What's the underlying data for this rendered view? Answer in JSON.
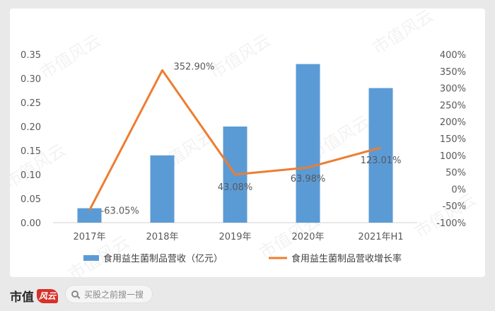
{
  "chart_data": {
    "type": "bar",
    "categories": [
      "2017年",
      "2018年",
      "2019年",
      "2020年",
      "2021年H1"
    ],
    "series": [
      {
        "name": "食用益生菌制品营收（亿元）",
        "type": "bar",
        "axis": "left",
        "values": [
          0.03,
          0.14,
          0.2,
          0.33,
          0.28
        ],
        "color": "#5b9bd5"
      },
      {
        "name": "食用益生菌制品营收增长率",
        "type": "line",
        "axis": "right",
        "values": [
          -63.05,
          352.9,
          43.08,
          63.98,
          123.01
        ],
        "labels": [
          "-63.05%",
          "352.90%",
          "43.08%",
          "63.98%",
          "123.01%"
        ],
        "color": "#ed7d31"
      }
    ],
    "y_left": {
      "ylim": [
        0,
        0.35
      ],
      "ticks": [
        "0.00",
        "0.05",
        "0.10",
        "0.15",
        "0.20",
        "0.25",
        "0.30",
        "0.35"
      ]
    },
    "y_right": {
      "ylim": [
        -100,
        400
      ],
      "ticks": [
        "-100%",
        "-50%",
        "0%",
        "50%",
        "100%",
        "150%",
        "200%",
        "250%",
        "300%",
        "350%",
        "400%"
      ]
    },
    "grid": false,
    "legend": "bottom"
  },
  "watermark": "市值风云",
  "footer": {
    "brand": "市值",
    "brand_mark": "风云",
    "search_placeholder": "买股之前搜一搜"
  }
}
